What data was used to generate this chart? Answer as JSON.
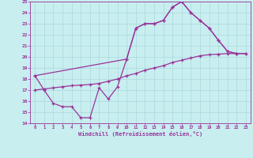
{
  "xlabel": "Windchill (Refroidissement éolien,°C)",
  "bg_color": "#c8eef0",
  "grid_color": "#aad8dc",
  "line_color": "#993399",
  "xlim": [
    -0.5,
    23.5
  ],
  "ylim": [
    14,
    25
  ],
  "xticks": [
    0,
    1,
    2,
    3,
    4,
    5,
    6,
    7,
    8,
    9,
    10,
    11,
    12,
    13,
    14,
    15,
    16,
    17,
    18,
    19,
    20,
    21,
    22,
    23
  ],
  "yticks": [
    14,
    15,
    16,
    17,
    18,
    19,
    20,
    21,
    22,
    23,
    24,
    25
  ],
  "line1_x": [
    0,
    1,
    2,
    3,
    4,
    5,
    6,
    7,
    8,
    9,
    10,
    11,
    12,
    13,
    14,
    15,
    16,
    17,
    18,
    19,
    20,
    21,
    22
  ],
  "line1_y": [
    18.3,
    17.0,
    15.8,
    15.5,
    15.5,
    14.5,
    14.5,
    17.2,
    16.2,
    17.3,
    19.8,
    22.6,
    23.0,
    23.0,
    23.3,
    24.5,
    25.0,
    24.0,
    23.3,
    22.6,
    21.5,
    20.5,
    20.3
  ],
  "line2_x": [
    0,
    1,
    2,
    3,
    4,
    5,
    6,
    7,
    8,
    9,
    10,
    11,
    12,
    13,
    14,
    15,
    16,
    17,
    18,
    19,
    20,
    21,
    22,
    23
  ],
  "line2_y": [
    17.0,
    17.1,
    17.2,
    17.3,
    17.4,
    17.45,
    17.5,
    17.6,
    17.8,
    18.0,
    18.3,
    18.5,
    18.8,
    19.0,
    19.2,
    19.5,
    19.7,
    19.9,
    20.1,
    20.2,
    20.25,
    20.3,
    20.3,
    20.3
  ],
  "line3_x": [
    0,
    10,
    11,
    12,
    13,
    14,
    15,
    16,
    17,
    18,
    19,
    20,
    21,
    22,
    23
  ],
  "line3_y": [
    18.3,
    19.8,
    22.6,
    23.0,
    23.0,
    23.3,
    24.5,
    25.0,
    24.0,
    23.3,
    22.6,
    21.5,
    20.5,
    20.3,
    20.3
  ]
}
